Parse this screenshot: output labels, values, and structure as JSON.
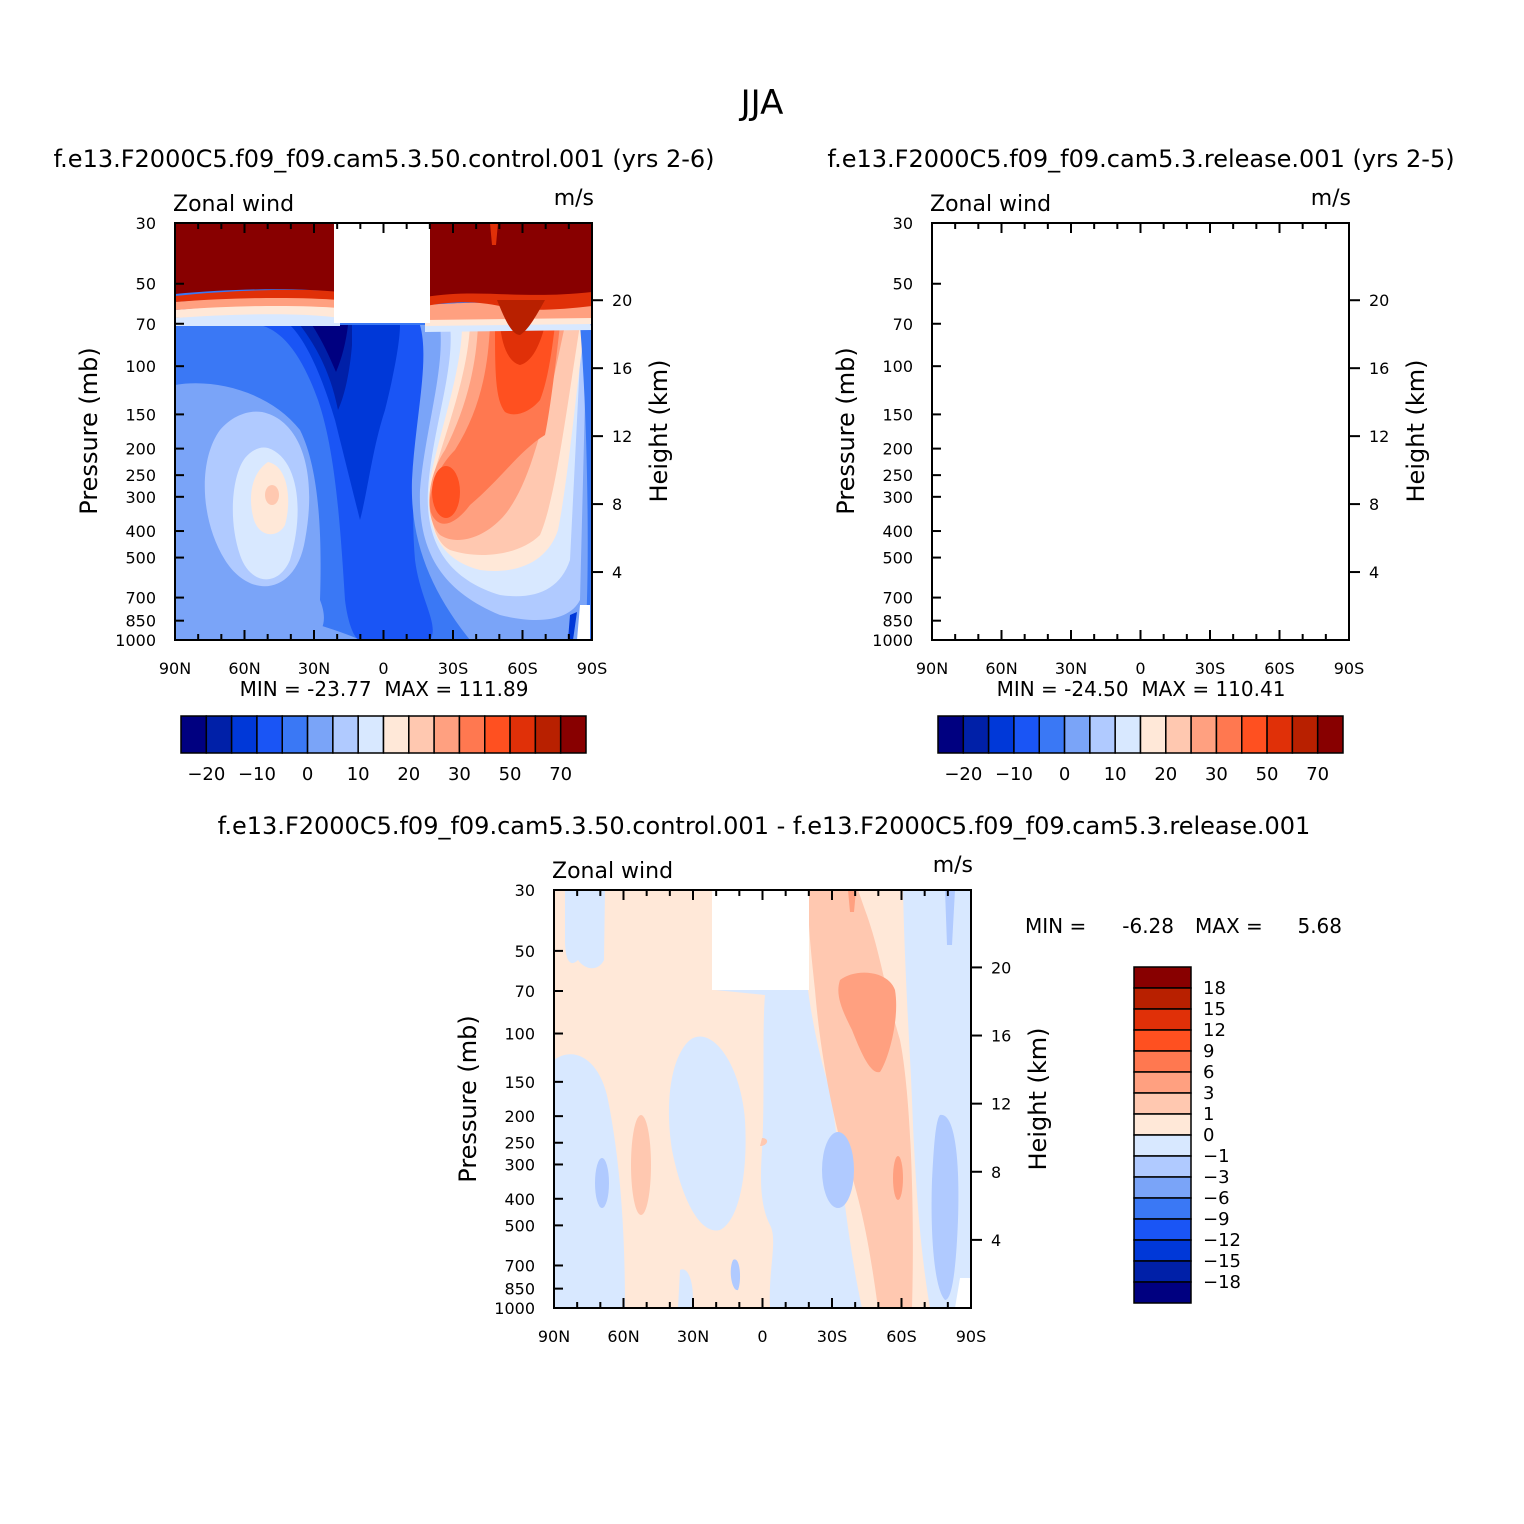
{
  "figure_title": "JJA",
  "colors": {
    "main_scale": [
      "#000080",
      "#0020a8",
      "#0038d8",
      "#1a55f5",
      "#3a78f5",
      "#7aa4f8",
      "#b0caff",
      "#d8e8ff",
      "#ffe8d8",
      "#ffc8b0",
      "#ffa080",
      "#ff7850",
      "#ff5020",
      "#e03008",
      "#b82000",
      "#880000"
    ],
    "diff_scale": [
      "#000080",
      "#0020a8",
      "#0038d8",
      "#1a55f5",
      "#3a78f5",
      "#7aa4f8",
      "#b0caff",
      "#d8e8ff",
      "#ffe8d8",
      "#ffc8b0",
      "#ffa080",
      "#ff7850",
      "#ff5020",
      "#e03008",
      "#b82000",
      "#880000"
    ]
  },
  "chart_data": [
    {
      "type": "heatmap",
      "id": "control",
      "title": "f.e13.F2000C5.f09_f09.cam5.3.50.control.001 (yrs 2-6)",
      "variable_label": "Zonal wind",
      "units_label": "m/s",
      "ylabel": "Pressure (mb)",
      "ylabel_right": "Height (km)",
      "x_ticks": [
        "90N",
        "60N",
        "30N",
        "0",
        "30S",
        "60S",
        "90S"
      ],
      "y_ticks": [
        "30",
        "50",
        "70",
        "100",
        "150",
        "200",
        "250",
        "300",
        "400",
        "500",
        "700",
        "850",
        "1000"
      ],
      "y_ticks_right": [
        "20",
        "16",
        "12",
        "8",
        "4"
      ],
      "ylim": [
        1000,
        30
      ],
      "stats": "MIN = -23.77  MAX = 111.89",
      "colorbar_labels": [
        "-20",
        "-10",
        "0",
        "10",
        "20",
        "30",
        "50",
        "70"
      ]
    },
    {
      "type": "heatmap",
      "id": "release",
      "title": "f.e13.F2000C5.f09_f09.cam5.3.release.001 (yrs 2-5)",
      "variable_label": "Zonal wind",
      "units_label": "m/s",
      "ylabel": "Pressure (mb)",
      "ylabel_right": "Height (km)",
      "x_ticks": [
        "90N",
        "60N",
        "30N",
        "0",
        "30S",
        "60S",
        "90S"
      ],
      "y_ticks": [
        "30",
        "50",
        "70",
        "100",
        "150",
        "200",
        "250",
        "300",
        "400",
        "500",
        "700",
        "850",
        "1000"
      ],
      "y_ticks_right": [
        "20",
        "16",
        "12",
        "8",
        "4"
      ],
      "ylim": [
        1000,
        30
      ],
      "stats": "MIN = -24.50  MAX = 110.41",
      "colorbar_labels": [
        "-20",
        "-10",
        "0",
        "10",
        "20",
        "30",
        "50",
        "70"
      ]
    },
    {
      "type": "heatmap",
      "id": "difference",
      "title": "f.e13.F2000C5.f09_f09.cam5.3.50.control.001 - f.e13.F2000C5.f09_f09.cam5.3.release.001",
      "variable_label": "Zonal wind",
      "units_label": "m/s",
      "ylabel": "Pressure (mb)",
      "ylabel_right": "Height (km)",
      "x_ticks": [
        "90N",
        "60N",
        "30N",
        "0",
        "30S",
        "60S",
        "90S"
      ],
      "y_ticks": [
        "30",
        "50",
        "70",
        "100",
        "150",
        "200",
        "250",
        "300",
        "400",
        "500",
        "700",
        "850",
        "1000"
      ],
      "y_ticks_right": [
        "20",
        "16",
        "12",
        "8",
        "4"
      ],
      "ylim": [
        1000,
        30
      ],
      "stats_min_label": "MIN =",
      "stats_min_value": "-6.28",
      "stats_max_label": "MAX =",
      "stats_max_value": "5.68",
      "colorbar_labels": [
        "18",
        "15",
        "12",
        "9",
        "6",
        "3",
        "1",
        "0",
        "-1",
        "-3",
        "-6",
        "-9",
        "-12",
        "-15",
        "-18"
      ]
    }
  ]
}
